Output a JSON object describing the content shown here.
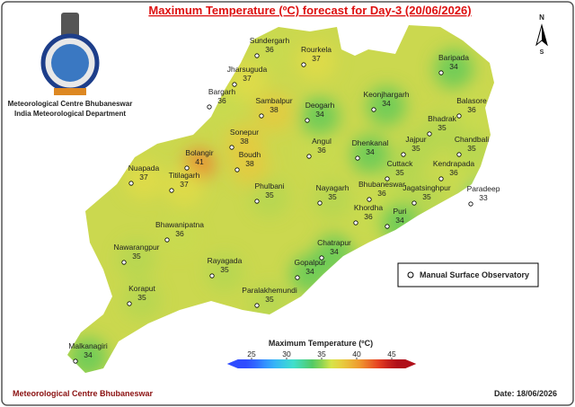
{
  "header": {
    "title": "Maximum Temperature (ºC) forecast for Day-3 (20/06/2026)",
    "org_line1": "Meteorological Centre Bhubaneswar",
    "org_line2": "India Meteorological Department"
  },
  "north_arrow": {
    "north": "N",
    "south": "S"
  },
  "stations": [
    {
      "name": "Sundergarh",
      "temp": 36
    },
    {
      "name": "Rourkela",
      "temp": 37
    },
    {
      "name": "Jharsuguda",
      "temp": 37
    },
    {
      "name": "Baripada",
      "temp": 34
    },
    {
      "name": "Bargarh",
      "temp": 36
    },
    {
      "name": "Sambalpur",
      "temp": 38
    },
    {
      "name": "Deogarh",
      "temp": 34
    },
    {
      "name": "Keonjhargarh",
      "temp": 34
    },
    {
      "name": "Balasore",
      "temp": 36
    },
    {
      "name": "Bhadrak",
      "temp": 35
    },
    {
      "name": "Sonepur",
      "temp": 38
    },
    {
      "name": "Angul",
      "temp": 36
    },
    {
      "name": "Dhenkanal",
      "temp": 34
    },
    {
      "name": "Jajpur",
      "temp": 35
    },
    {
      "name": "Chandbali",
      "temp": 35
    },
    {
      "name": "Bolangir",
      "temp": 41
    },
    {
      "name": "Boudh",
      "temp": 38
    },
    {
      "name": "Nuapada",
      "temp": 37
    },
    {
      "name": "Titilagarh",
      "temp": 37
    },
    {
      "name": "Cuttack",
      "temp": 35
    },
    {
      "name": "Kendrapada",
      "temp": 36
    },
    {
      "name": "Paradeep",
      "temp": 33
    },
    {
      "name": "Phulbani",
      "temp": 35
    },
    {
      "name": "Nayagarh",
      "temp": 35
    },
    {
      "name": "Bhubaneswar",
      "temp": 36
    },
    {
      "name": "Jagatsinghpur",
      "temp": 35
    },
    {
      "name": "Khordha",
      "temp": 36
    },
    {
      "name": "Puri",
      "temp": 34
    },
    {
      "name": "Bhawanipatna",
      "temp": 36
    },
    {
      "name": "Nawarangpur",
      "temp": 35
    },
    {
      "name": "Chatrapur",
      "temp": 34
    },
    {
      "name": "Rayagada",
      "temp": 35
    },
    {
      "name": "Gopalpur",
      "temp": 34
    },
    {
      "name": "Koraput",
      "temp": 35
    },
    {
      "name": "Paralakhemundi",
      "temp": 35
    },
    {
      "name": "Malkanagiri",
      "temp": 34
    }
  ],
  "legend": {
    "marker_label": "Manual Surface Observatory"
  },
  "colorbar": {
    "label": "Maximum Temperature (ºC)",
    "ticks": [
      25,
      30,
      35,
      40,
      45
    ]
  },
  "footer": {
    "left": "Meteorological Centre Bhubaneswar",
    "right": "Date: 18/06/2026"
  }
}
